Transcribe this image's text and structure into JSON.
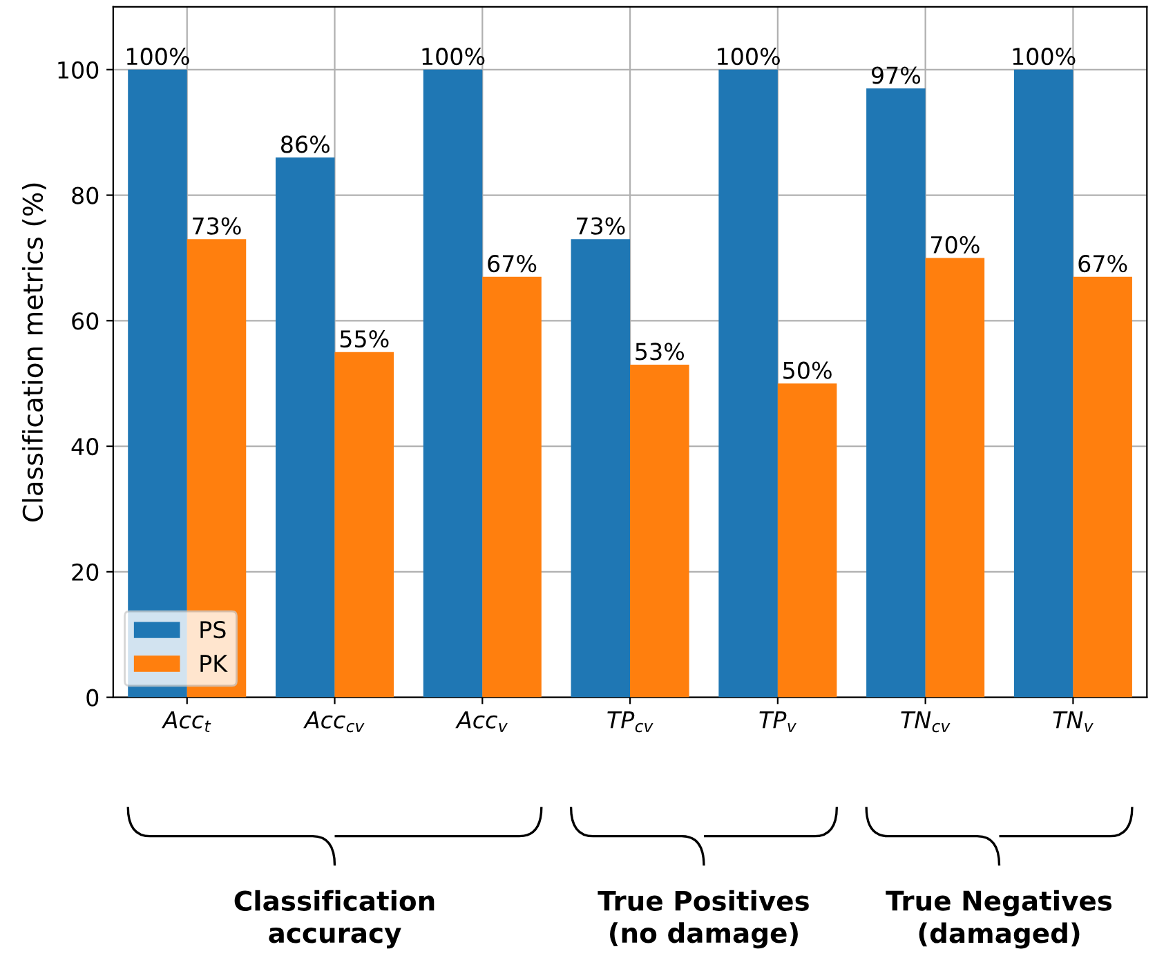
{
  "chart_data": {
    "type": "bar",
    "ylabel": "Classification metrics (%)",
    "categories": [
      "Acc$_{t}$",
      "Acc$_{cv}$",
      "Acc$_{v}$",
      "TP$_{cv}$",
      "TP$_{v}$",
      "TN$_{cv}$",
      "TN$_{v}$"
    ],
    "series": [
      {
        "name": "PS",
        "color": "#1f77b4",
        "values": [
          100,
          86,
          100,
          73,
          100,
          97,
          100
        ],
        "value_labels": [
          "100%",
          "86%",
          "100%",
          "73%",
          "100%",
          "97%",
          "100%"
        ]
      },
      {
        "name": "PK",
        "color": "#ff7f0e",
        "values": [
          73,
          55,
          67,
          53,
          50,
          70,
          67
        ],
        "value_labels": [
          "73%",
          "55%",
          "67%",
          "53%",
          "50%",
          "70%",
          "67%"
        ]
      }
    ],
    "ylim": [
      0,
      110
    ],
    "yticks": [
      0,
      20,
      40,
      60,
      80,
      100
    ],
    "grid": true,
    "legend": "bottom left",
    "annotations": [
      "Classification\naccuracy",
      "True Positives\n(no damage)",
      "True Negatives\n(damaged)"
    ]
  }
}
